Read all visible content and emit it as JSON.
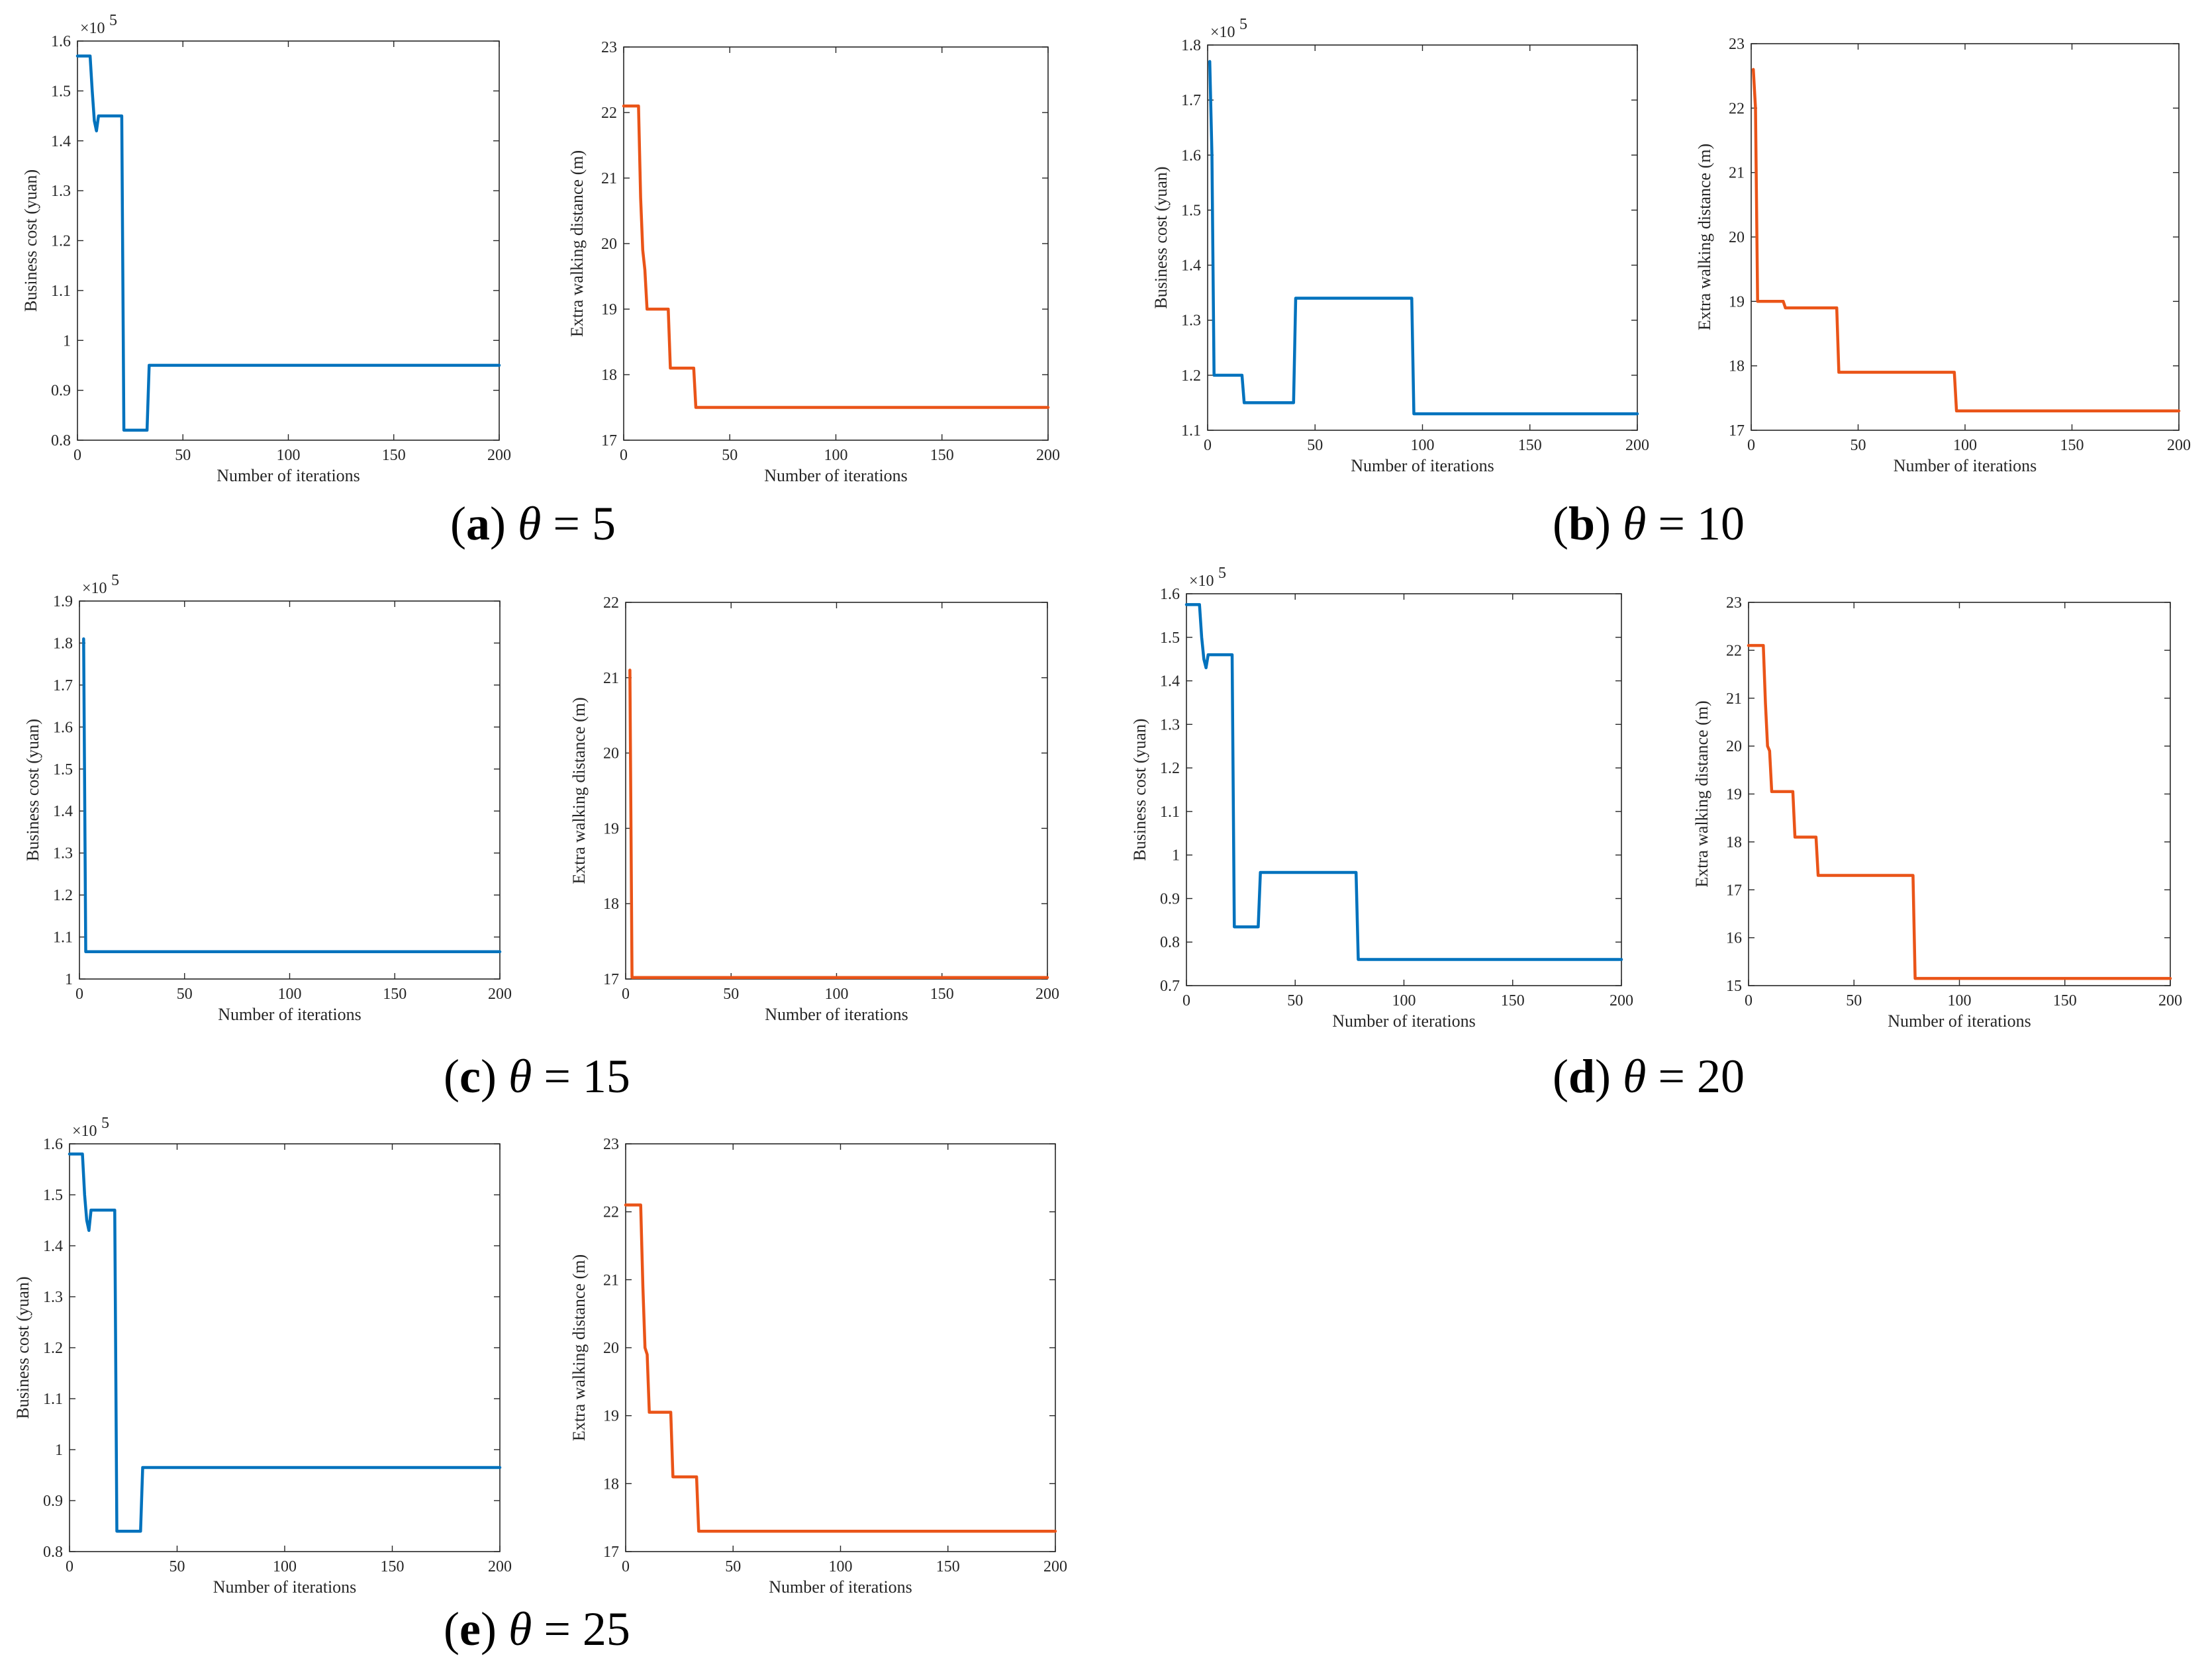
{
  "figure": {
    "captions": [
      {
        "letter": "a",
        "symbol": "θ",
        "rest": " = 5"
      },
      {
        "letter": "b",
        "symbol": "θ",
        "rest": " = 10"
      },
      {
        "letter": "c",
        "symbol": "θ",
        "rest": " = 15"
      },
      {
        "letter": "d",
        "symbol": "θ",
        "rest": " = 20"
      },
      {
        "letter": "e",
        "symbol": "θ",
        "rest": " = 25"
      }
    ],
    "colors": {
      "cost": "#0072BD",
      "walk": "#EA5418",
      "axis": "#262626"
    }
  },
  "chart_data": [
    {
      "type": "line",
      "panel": "a-left",
      "xlabel": "Number of iterations",
      "ylabel": "Business cost (yuan)",
      "exponent_label": "×10",
      "exponent": "5",
      "xlim": [
        0,
        200
      ],
      "ylim": [
        0.8,
        1.6
      ],
      "xticks": [
        "0",
        "50",
        "100",
        "150",
        "200"
      ],
      "yticks": [
        "0.8",
        "0.9",
        "1",
        "1.1",
        "1.2",
        "1.3",
        "1.4",
        "1.5",
        "1.6"
      ],
      "series": [
        {
          "name": "Business cost",
          "color": "#0072BD",
          "x": [
            0,
            6,
            7,
            8,
            9,
            10,
            12,
            21,
            22,
            33,
            34,
            200
          ],
          "y": [
            1.57,
            1.57,
            1.5,
            1.44,
            1.42,
            1.45,
            1.45,
            1.45,
            0.82,
            0.82,
            0.95,
            0.95
          ]
        }
      ]
    },
    {
      "type": "line",
      "panel": "a-right",
      "xlabel": "Number of iterations",
      "ylabel": "Extra walking distance (m)",
      "xlim": [
        0,
        200
      ],
      "ylim": [
        17,
        23
      ],
      "xticks": [
        "0",
        "50",
        "100",
        "150",
        "200"
      ],
      "yticks": [
        "17",
        "18",
        "19",
        "20",
        "21",
        "22",
        "23"
      ],
      "series": [
        {
          "name": "Extra walking distance",
          "color": "#EA5418",
          "x": [
            0,
            7,
            8,
            9,
            10,
            11,
            21,
            22,
            33,
            34,
            200
          ],
          "y": [
            22.1,
            22.1,
            20.7,
            19.9,
            19.6,
            19.0,
            19.0,
            18.1,
            18.1,
            17.5,
            17.5
          ]
        }
      ]
    },
    {
      "type": "line",
      "panel": "b-left",
      "xlabel": "Number of iterations",
      "ylabel": "Business cost (yuan)",
      "exponent_label": "×10",
      "exponent": "5",
      "xlim": [
        0,
        200
      ],
      "ylim": [
        1.1,
        1.8
      ],
      "xticks": [
        "0",
        "50",
        "100",
        "150",
        "200"
      ],
      "yticks": [
        "1.1",
        "1.2",
        "1.3",
        "1.4",
        "1.5",
        "1.6",
        "1.7",
        "1.8"
      ],
      "series": [
        {
          "name": "Business cost",
          "color": "#0072BD",
          "x": [
            1,
            2,
            3,
            16,
            17,
            40,
            41,
            95,
            96,
            200
          ],
          "y": [
            1.77,
            1.6,
            1.2,
            1.2,
            1.15,
            1.15,
            1.34,
            1.34,
            1.13,
            1.13
          ]
        }
      ]
    },
    {
      "type": "line",
      "panel": "b-right",
      "xlabel": "Number of iterations",
      "ylabel": "Extra walking distance (m)",
      "xlim": [
        0,
        200
      ],
      "ylim": [
        17,
        23
      ],
      "xticks": [
        "0",
        "50",
        "100",
        "150",
        "200"
      ],
      "yticks": [
        "17",
        "18",
        "19",
        "20",
        "21",
        "22",
        "23"
      ],
      "series": [
        {
          "name": "Extra walking distance",
          "color": "#EA5418",
          "x": [
            1,
            2,
            3,
            15,
            16,
            40,
            41,
            95,
            96,
            200
          ],
          "y": [
            22.6,
            22.0,
            19.0,
            19.0,
            18.9,
            18.9,
            17.9,
            17.9,
            17.3,
            17.3
          ]
        }
      ]
    },
    {
      "type": "line",
      "panel": "c-left",
      "xlabel": "Number of iterations",
      "ylabel": "Business cost (yuan)",
      "exponent_label": "×10",
      "exponent": "5",
      "xlim": [
        0,
        200
      ],
      "ylim": [
        1.0,
        1.9
      ],
      "xticks": [
        "0",
        "50",
        "100",
        "150",
        "200"
      ],
      "yticks": [
        "1",
        "1.1",
        "1.2",
        "1.3",
        "1.4",
        "1.5",
        "1.6",
        "1.7",
        "1.8",
        "1.9"
      ],
      "series": [
        {
          "name": "Business cost",
          "color": "#0072BD",
          "x": [
            2,
            3,
            200
          ],
          "y": [
            1.81,
            1.065,
            1.065
          ]
        }
      ]
    },
    {
      "type": "line",
      "panel": "c-right",
      "xlabel": "Number of iterations",
      "ylabel": "Extra walking distance (m)",
      "xlim": [
        0,
        200
      ],
      "ylim": [
        17,
        22
      ],
      "xticks": [
        "0",
        "50",
        "100",
        "150",
        "200"
      ],
      "yticks": [
        "17",
        "18",
        "19",
        "20",
        "21",
        "22"
      ],
      "series": [
        {
          "name": "Extra walking distance",
          "color": "#EA5418",
          "x": [
            2,
            3,
            200
          ],
          "y": [
            21.1,
            17.02,
            17.02
          ]
        }
      ]
    },
    {
      "type": "line",
      "panel": "d-left",
      "xlabel": "Number of iterations",
      "ylabel": "Business cost (yuan)",
      "exponent_label": "×10",
      "exponent": "5",
      "xlim": [
        0,
        200
      ],
      "ylim": [
        0.7,
        1.6
      ],
      "xticks": [
        "0",
        "50",
        "100",
        "150",
        "200"
      ],
      "yticks": [
        "0.7",
        "0.8",
        "0.9",
        "1",
        "1.1",
        "1.2",
        "1.3",
        "1.4",
        "1.5",
        "1.6"
      ],
      "series": [
        {
          "name": "Business cost",
          "color": "#0072BD",
          "x": [
            0,
            6,
            7,
            8,
            9,
            10,
            12,
            21,
            22,
            33,
            34,
            78,
            79,
            200
          ],
          "y": [
            1.575,
            1.575,
            1.5,
            1.45,
            1.43,
            1.46,
            1.46,
            1.46,
            0.835,
            0.835,
            0.96,
            0.96,
            0.76,
            0.76
          ]
        }
      ]
    },
    {
      "type": "line",
      "panel": "d-right",
      "xlabel": "Number of iterations",
      "ylabel": "Extra walking distance (m)",
      "xlim": [
        0,
        200
      ],
      "ylim": [
        15,
        23
      ],
      "xticks": [
        "0",
        "50",
        "100",
        "150",
        "200"
      ],
      "yticks": [
        "15",
        "16",
        "17",
        "18",
        "19",
        "20",
        "21",
        "22",
        "23"
      ],
      "series": [
        {
          "name": "Extra walking distance",
          "color": "#EA5418",
          "x": [
            0,
            7,
            8,
            9,
            10,
            11,
            21,
            22,
            32,
            33,
            78,
            79,
            200
          ],
          "y": [
            22.1,
            22.1,
            20.9,
            20.0,
            19.9,
            19.05,
            19.05,
            18.1,
            18.1,
            17.3,
            17.3,
            15.15,
            15.15
          ]
        }
      ]
    },
    {
      "type": "line",
      "panel": "e-left",
      "xlabel": "Number of iterations",
      "ylabel": "Business cost (yuan)",
      "exponent_label": "×10",
      "exponent": "5",
      "xlim": [
        0,
        200
      ],
      "ylim": [
        0.8,
        1.6
      ],
      "xticks": [
        "0",
        "50",
        "100",
        "150",
        "200"
      ],
      "yticks": [
        "0.8",
        "0.9",
        "1",
        "1.1",
        "1.2",
        "1.3",
        "1.4",
        "1.5",
        "1.6"
      ],
      "series": [
        {
          "name": "Business cost",
          "color": "#0072BD",
          "x": [
            0,
            6,
            7,
            8,
            9,
            10,
            12,
            21,
            22,
            33,
            34,
            200
          ],
          "y": [
            1.58,
            1.58,
            1.5,
            1.45,
            1.43,
            1.47,
            1.47,
            1.47,
            0.84,
            0.84,
            0.965,
            0.965
          ]
        }
      ]
    },
    {
      "type": "line",
      "panel": "e-right",
      "xlabel": "Number of iterations",
      "ylabel": "Extra walking distance (m)",
      "xlim": [
        0,
        200
      ],
      "ylim": [
        17,
        23
      ],
      "xticks": [
        "0",
        "50",
        "100",
        "150",
        "200"
      ],
      "yticks": [
        "17",
        "18",
        "19",
        "20",
        "21",
        "22",
        "23"
      ],
      "series": [
        {
          "name": "Extra walking distance",
          "color": "#EA5418",
          "x": [
            0,
            7,
            8,
            9,
            10,
            11,
            21,
            22,
            33,
            34,
            200
          ],
          "y": [
            22.1,
            22.1,
            20.9,
            20.0,
            19.9,
            19.05,
            19.05,
            18.1,
            18.1,
            17.3,
            17.3
          ]
        }
      ]
    }
  ]
}
